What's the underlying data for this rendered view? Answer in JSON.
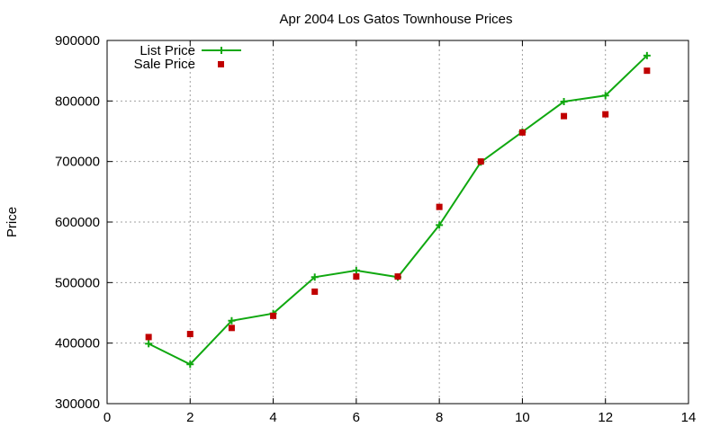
{
  "chart_data": {
    "type": "line",
    "title": "Apr 2004 Los Gatos Townhouse Prices",
    "xlabel": "",
    "ylabel": "Price",
    "xlim": [
      0,
      14
    ],
    "ylim": [
      300000,
      900000
    ],
    "xticks": [
      0,
      2,
      4,
      6,
      8,
      10,
      12,
      14
    ],
    "yticks": [
      300000,
      400000,
      500000,
      600000,
      700000,
      800000,
      900000
    ],
    "grid": true,
    "legend_position": "top-left",
    "series": [
      {
        "name": "List Price",
        "style": "line-points",
        "marker": "plus",
        "color": "#10a810",
        "x": [
          1,
          2,
          3,
          4,
          5,
          6,
          7,
          8,
          9,
          10,
          11,
          12,
          13
        ],
        "y": [
          399000,
          365000,
          437000,
          449000,
          509000,
          520000,
          509000,
          595000,
          699000,
          749000,
          799000,
          809000,
          875000
        ]
      },
      {
        "name": "Sale Price",
        "style": "points",
        "marker": "square",
        "color": "#c00000",
        "x": [
          1,
          2,
          3,
          4,
          5,
          6,
          7,
          8,
          9,
          10,
          11,
          12,
          13
        ],
        "y": [
          410000,
          415000,
          425000,
          445000,
          485000,
          510000,
          510000,
          625000,
          700000,
          748000,
          775000,
          778000,
          850000
        ]
      }
    ]
  }
}
